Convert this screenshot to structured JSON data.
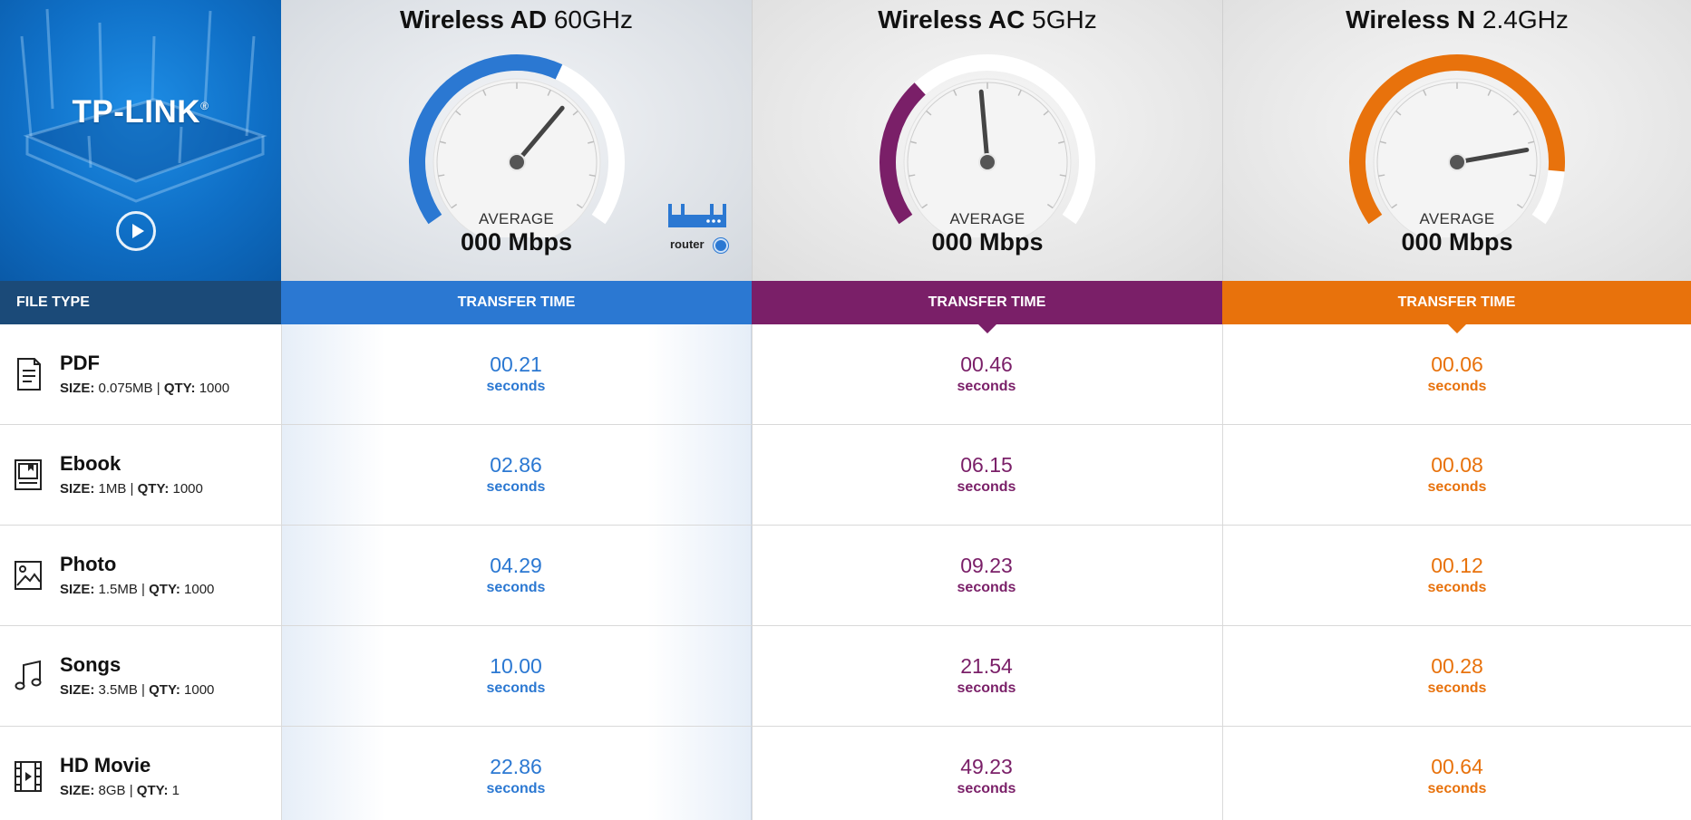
{
  "brand": {
    "logo_text": "TP-LINK",
    "logo_mark": "®",
    "play_icon": "play-circle-icon"
  },
  "bands": [
    {
      "name_bold": "Wireless AD",
      "name_light": "60GHz",
      "avg_label": "AVERAGE",
      "avg_value": "000 Mbps",
      "color": "#2b78d2",
      "fill_fraction": 0.6,
      "needle_fraction": 0.66
    },
    {
      "name_bold": "Wireless AC",
      "name_light": "5GHz",
      "avg_label": "AVERAGE",
      "avg_value": "000 Mbps",
      "color": "#7a1f68",
      "fill_fraction": 0.33,
      "needle_fraction": 0.48
    },
    {
      "name_bold": "Wireless N",
      "name_light": "2.4GHz",
      "avg_label": "AVERAGE",
      "avg_value": "000 Mbps",
      "color": "#e8720c",
      "fill_fraction": 0.88,
      "needle_fraction": 0.82
    }
  ],
  "router_badge": {
    "label": "router",
    "icon": "router-icon"
  },
  "header": {
    "file_type": "FILE TYPE",
    "transfer_time": "TRANSFER TIME"
  },
  "rows": [
    {
      "icon": "pdf-document-icon",
      "name": "PDF",
      "size_label": "SIZE:",
      "size": "0.075MB",
      "sep": "|",
      "qty_label": "QTY:",
      "qty": "1000",
      "times": [
        "00.21",
        "00.46",
        "00.06"
      ],
      "unit": "seconds"
    },
    {
      "icon": "ebook-icon",
      "name": "Ebook",
      "size_label": "SIZE:",
      "size": "1MB",
      "sep": "|",
      "qty_label": "QTY:",
      "qty": "1000",
      "times": [
        "02.86",
        "06.15",
        "00.08"
      ],
      "unit": "seconds"
    },
    {
      "icon": "photo-icon",
      "name": "Photo",
      "size_label": "SIZE:",
      "size": "1.5MB",
      "sep": "|",
      "qty_label": "QTY:",
      "qty": "1000",
      "times": [
        "04.29",
        "09.23",
        "00.12"
      ],
      "unit": "seconds"
    },
    {
      "icon": "music-note-icon",
      "name": "Songs",
      "size_label": "SIZE:",
      "size": "3.5MB",
      "sep": "|",
      "qty_label": "QTY:",
      "qty": "1000",
      "times": [
        "10.00",
        "21.54",
        "00.28"
      ],
      "unit": "seconds"
    },
    {
      "icon": "film-icon",
      "name": "HD Movie",
      "size_label": "SIZE:",
      "size": "8GB",
      "sep": "|",
      "qty_label": "QTY:",
      "qty": "1",
      "times": [
        "22.86",
        "49.23",
        "00.64"
      ],
      "unit": "seconds"
    }
  ]
}
